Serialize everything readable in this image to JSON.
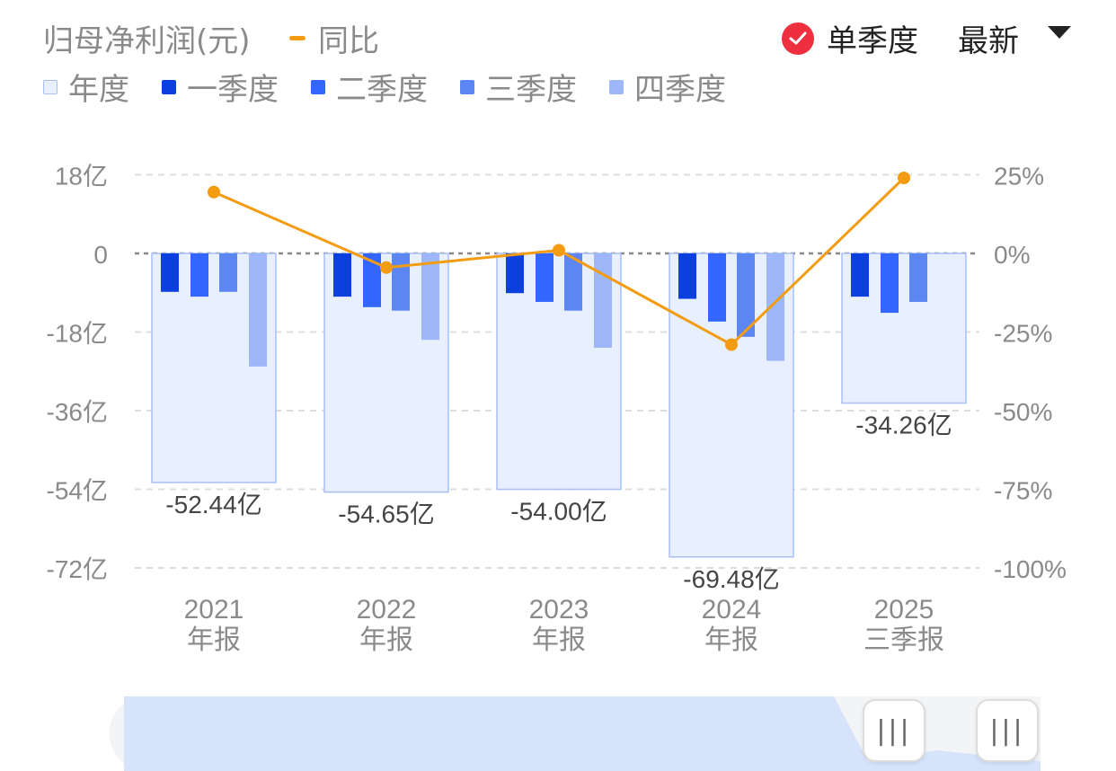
{
  "header": {
    "title": "归母净利润(元)",
    "yoy_label": "同比",
    "single_quarter_label": "单季度",
    "latest_label": "最新"
  },
  "legend": [
    {
      "label": "年度",
      "color": "#e8efff",
      "border": "#a9bff5"
    },
    {
      "label": "一季度",
      "color": "#0b3fe0"
    },
    {
      "label": "二季度",
      "color": "#3366ff"
    },
    {
      "label": "三季度",
      "color": "#5b86f3"
    },
    {
      "label": "四季度",
      "color": "#9db7f8"
    }
  ],
  "colors": {
    "annual_fill": "#e8efff",
    "annual_border": "#a9bff5",
    "q1": "#0b3fe0",
    "q2": "#3366ff",
    "q3": "#5b86f3",
    "q4": "#9db7f8",
    "yoy_line": "#f39c12",
    "grid": "#dddddd",
    "axis_text": "#8a8a8a",
    "check": "#ee2f3f"
  },
  "chart_data": {
    "type": "bar",
    "categories": [
      {
        "year": "2021",
        "period": "年报"
      },
      {
        "year": "2022",
        "period": "年报"
      },
      {
        "year": "2023",
        "period": "年报"
      },
      {
        "year": "2024",
        "period": "年报"
      },
      {
        "year": "2025",
        "period": "三季报"
      }
    ],
    "annual": [
      -52.44,
      -54.65,
      -54.0,
      -69.48,
      -34.26
    ],
    "annual_labels": [
      "-52.44亿",
      "-54.65亿",
      "-54.00亿",
      "-69.48亿",
      "-34.26亿"
    ],
    "quarters": [
      [
        -8.8,
        -9.9,
        -8.8,
        -25.9
      ],
      [
        -9.9,
        -12.3,
        -13.1,
        -19.8
      ],
      [
        -9.1,
        -11.1,
        -13.1,
        -21.6
      ],
      [
        -10.4,
        -15.6,
        -19.1,
        -24.6
      ],
      [
        -9.9,
        -13.6,
        -11.1,
        null
      ]
    ],
    "yoy_percent": [
      19.5,
      -4.5,
      1.0,
      -29.0,
      24.0
    ],
    "y_left": {
      "min": -72,
      "max": 18,
      "ticks": [
        18,
        0,
        -18,
        -36,
        -54,
        -72
      ],
      "tick_labels": [
        "18亿",
        "0",
        "-18亿",
        "-36亿",
        "-54亿",
        "-72亿"
      ]
    },
    "y_right": {
      "min": -100,
      "max": 25,
      "ticks": [
        25,
        0,
        -25,
        -50,
        -75,
        -100
      ],
      "tick_labels": [
        "25%",
        "0%",
        "-25%",
        "-50%",
        "-75%",
        "-100%"
      ]
    },
    "grid": true
  },
  "scrollbar": {
    "handle_left": "|||",
    "handle_right": "|||"
  }
}
